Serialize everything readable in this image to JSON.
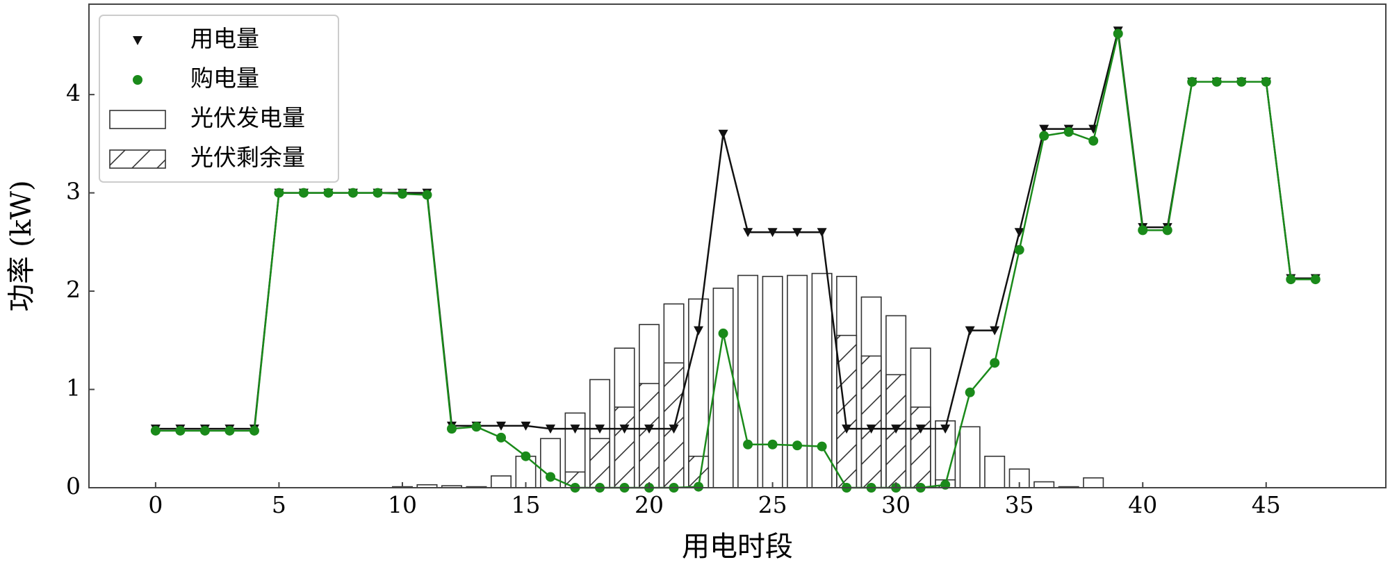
{
  "chart_data": {
    "type": "combo",
    "xlabel": "用电时段",
    "ylabel": "功率 (kW)",
    "x": [
      0,
      1,
      2,
      3,
      4,
      5,
      6,
      7,
      8,
      9,
      10,
      11,
      12,
      13,
      14,
      15,
      16,
      17,
      18,
      19,
      20,
      21,
      22,
      23,
      24,
      25,
      26,
      27,
      28,
      29,
      30,
      31,
      32,
      33,
      34,
      35,
      36,
      37,
      38,
      39,
      40,
      41,
      42,
      43,
      44,
      45,
      46,
      47
    ],
    "xlim": [
      -2.7,
      49.85
    ],
    "xticks": [
      0,
      5,
      10,
      15,
      20,
      25,
      30,
      35,
      40,
      45
    ],
    "ylim": [
      0,
      4.92
    ],
    "yticks": [
      0,
      1,
      2,
      3,
      4
    ],
    "legend": "upper left",
    "series": [
      {
        "name": "用电量",
        "type": "line",
        "marker": "triangle-down",
        "color": "#111111",
        "values": [
          0.6,
          0.6,
          0.6,
          0.6,
          0.6,
          3.0,
          3.0,
          3.0,
          3.0,
          3.0,
          3.0,
          3.0,
          0.63,
          0.63,
          0.63,
          0.63,
          0.6,
          0.6,
          0.6,
          0.6,
          0.6,
          0.6,
          1.6,
          3.6,
          2.6,
          2.6,
          2.6,
          2.6,
          0.6,
          0.6,
          0.6,
          0.6,
          0.6,
          1.6,
          1.6,
          2.6,
          3.65,
          3.65,
          3.65,
          4.65,
          2.65,
          2.65,
          4.13,
          4.13,
          4.13,
          4.13,
          2.13,
          2.13
        ]
      },
      {
        "name": "购电量",
        "type": "line",
        "marker": "circle",
        "color": "#1a8a1a",
        "values": [
          0.58,
          0.58,
          0.58,
          0.58,
          0.58,
          3.0,
          3.0,
          3.0,
          3.0,
          3.0,
          2.99,
          2.98,
          0.6,
          0.62,
          0.51,
          0.32,
          0.11,
          0.0,
          0.0,
          0.0,
          0.0,
          0.0,
          0.01,
          1.57,
          0.44,
          0.44,
          0.43,
          0.42,
          0.0,
          0.0,
          0.0,
          0.0,
          0.03,
          0.97,
          1.27,
          2.42,
          3.58,
          3.62,
          3.53,
          4.62,
          2.62,
          2.62,
          4.13,
          4.13,
          4.13,
          4.13,
          2.12,
          2.12
        ]
      },
      {
        "name": "光伏发电量",
        "type": "bar",
        "color": "#ffffff",
        "values": [
          0,
          0,
          0,
          0,
          0,
          0,
          0,
          0,
          0,
          0,
          0.01,
          0.03,
          0.02,
          0.01,
          0.12,
          0.32,
          0.5,
          0.76,
          1.1,
          1.42,
          1.66,
          1.87,
          1.92,
          2.03,
          2.16,
          2.15,
          2.16,
          2.18,
          2.15,
          1.94,
          1.75,
          1.42,
          0.68,
          0.62,
          0.32,
          0.19,
          0.06,
          0.01,
          0.1,
          0,
          0,
          0,
          0,
          0,
          0,
          0,
          0,
          0
        ]
      },
      {
        "name": "光伏剩余量",
        "type": "bar",
        "hatch": "/",
        "color": "#ffffff",
        "values": [
          0,
          0,
          0,
          0,
          0,
          0,
          0,
          0,
          0,
          0,
          0,
          0,
          0,
          0,
          0,
          0,
          0,
          0.16,
          0.5,
          0.82,
          1.06,
          1.27,
          0.32,
          0,
          0,
          0,
          0,
          0,
          1.55,
          1.34,
          1.15,
          0.82,
          0.08,
          0,
          0,
          0,
          0,
          0,
          0,
          0,
          0,
          0,
          0,
          0,
          0,
          0,
          0,
          0
        ]
      }
    ]
  }
}
